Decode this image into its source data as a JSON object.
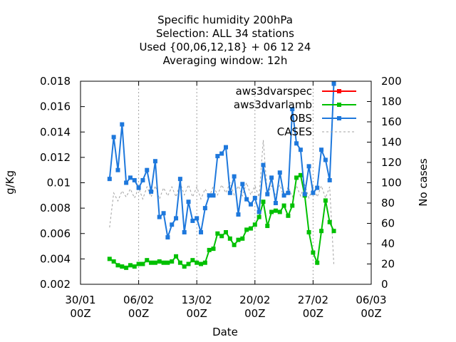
{
  "chart_data": {
    "type": "line",
    "title_lines": [
      "Specific humidity 200hPa",
      "Selection: ALL     34 stations",
      "Used {00,06,12,18} + 06 12 24",
      "Averaging window: 12h"
    ],
    "xlabel": "Date",
    "ylabel": "g/Kg",
    "y2label": "No cases",
    "x_ticks": [
      {
        "day": 0,
        "line1": "30/01",
        "line2": "00Z"
      },
      {
        "day": 7,
        "line1": "06/02",
        "line2": "00Z"
      },
      {
        "day": 14,
        "line1": "13/02",
        "line2": "00Z"
      },
      {
        "day": 21,
        "line1": "20/02",
        "line2": "00Z"
      },
      {
        "day": 28,
        "line1": "27/02",
        "line2": "00Z"
      },
      {
        "day": 35,
        "line1": "06/03",
        "line2": "00Z"
      }
    ],
    "xlim_days": [
      0,
      35
    ],
    "ylim": [
      0.002,
      0.018
    ],
    "y_ticks": [
      "0.002",
      "0.004",
      "0.006",
      "0.008",
      "0.01",
      "0.012",
      "0.014",
      "0.016",
      "0.018"
    ],
    "y2lim": [
      0,
      200
    ],
    "y2_ticks": [
      "0",
      "20",
      "40",
      "60",
      "80",
      "100",
      "120",
      "140",
      "160",
      "180",
      "200"
    ],
    "legend_position": "top-right",
    "series": [
      {
        "name": "aws3dvarspec",
        "axis": "y",
        "color": "#ff0000",
        "style": "line-points",
        "points": []
      },
      {
        "name": "aws3dvarlamb",
        "axis": "y",
        "color": "#00c000",
        "style": "line-points",
        "points": [
          [
            3.5,
            0.004
          ],
          [
            4.0,
            0.0038
          ],
          [
            4.5,
            0.0035
          ],
          [
            5.0,
            0.0034
          ],
          [
            5.5,
            0.0033
          ],
          [
            6.0,
            0.0035
          ],
          [
            6.5,
            0.0034
          ],
          [
            7.0,
            0.0036
          ],
          [
            7.5,
            0.0036
          ],
          [
            8.0,
            0.0039
          ],
          [
            8.5,
            0.0037
          ],
          [
            9.0,
            0.0037
          ],
          [
            9.5,
            0.0038
          ],
          [
            10.0,
            0.0037
          ],
          [
            10.5,
            0.0037
          ],
          [
            11.0,
            0.0038
          ],
          [
            11.5,
            0.0042
          ],
          [
            12.0,
            0.0037
          ],
          [
            12.5,
            0.0034
          ],
          [
            13.0,
            0.0036
          ],
          [
            13.5,
            0.0039
          ],
          [
            14.0,
            0.0037
          ],
          [
            14.5,
            0.0036
          ],
          [
            15.0,
            0.0037
          ],
          [
            15.5,
            0.0047
          ],
          [
            16.0,
            0.0048
          ],
          [
            16.5,
            0.006
          ],
          [
            17.0,
            0.0058
          ],
          [
            17.5,
            0.0061
          ],
          [
            18.0,
            0.0056
          ],
          [
            18.5,
            0.0051
          ],
          [
            19.0,
            0.0055
          ],
          [
            19.5,
            0.0056
          ],
          [
            20.0,
            0.0063
          ],
          [
            20.5,
            0.0064
          ],
          [
            21.0,
            0.0067
          ],
          [
            21.5,
            0.0073
          ],
          [
            22.0,
            0.0085
          ],
          [
            22.5,
            0.0066
          ],
          [
            23.0,
            0.0077
          ],
          [
            23.5,
            0.0078
          ],
          [
            24.0,
            0.0077
          ],
          [
            24.5,
            0.0082
          ],
          [
            25.0,
            0.0074
          ],
          [
            25.5,
            0.0082
          ],
          [
            26.0,
            0.0104
          ],
          [
            26.5,
            0.0106
          ],
          [
            27.0,
            0.009
          ],
          [
            27.5,
            0.0061
          ],
          [
            28.0,
            0.0045
          ],
          [
            28.5,
            0.0037
          ],
          [
            29.0,
            0.0062
          ],
          [
            29.5,
            0.0086
          ],
          [
            30.0,
            0.0069
          ],
          [
            30.5,
            0.0062
          ]
        ]
      },
      {
        "name": "OBS",
        "axis": "y",
        "color": "#1e78dc",
        "style": "line-points",
        "points": [
          [
            3.5,
            0.0103
          ],
          [
            4.0,
            0.0136
          ],
          [
            4.5,
            0.011
          ],
          [
            5.0,
            0.0146
          ],
          [
            5.5,
            0.01
          ],
          [
            6.0,
            0.0104
          ],
          [
            6.5,
            0.0102
          ],
          [
            7.0,
            0.0096
          ],
          [
            7.5,
            0.0102
          ],
          [
            8.0,
            0.011
          ],
          [
            8.5,
            0.0093
          ],
          [
            9.0,
            0.0117
          ],
          [
            9.5,
            0.0073
          ],
          [
            10.0,
            0.0076
          ],
          [
            10.5,
            0.0057
          ],
          [
            11.0,
            0.0067
          ],
          [
            11.5,
            0.0072
          ],
          [
            12.0,
            0.0103
          ],
          [
            12.5,
            0.0061
          ],
          [
            13.0,
            0.0085
          ],
          [
            13.5,
            0.007
          ],
          [
            14.0,
            0.0072
          ],
          [
            14.5,
            0.0061
          ],
          [
            15.0,
            0.008
          ],
          [
            15.5,
            0.009
          ],
          [
            16.0,
            0.009
          ],
          [
            16.5,
            0.0121
          ],
          [
            17.0,
            0.0123
          ],
          [
            17.5,
            0.0128
          ],
          [
            18.0,
            0.0092
          ],
          [
            18.5,
            0.0105
          ],
          [
            19.0,
            0.0075
          ],
          [
            19.5,
            0.0099
          ],
          [
            20.0,
            0.0087
          ],
          [
            20.5,
            0.0083
          ],
          [
            21.0,
            0.0088
          ],
          [
            21.5,
            0.0077
          ],
          [
            22.0,
            0.0114
          ],
          [
            22.5,
            0.0091
          ],
          [
            23.0,
            0.0104
          ],
          [
            23.5,
            0.0084
          ],
          [
            24.0,
            0.0108
          ],
          [
            24.5,
            0.009
          ],
          [
            25.0,
            0.0092
          ],
          [
            25.5,
            0.0158
          ],
          [
            26.0,
            0.0131
          ],
          [
            26.5,
            0.0126
          ],
          [
            27.0,
            0.0091
          ],
          [
            27.5,
            0.0113
          ],
          [
            28.0,
            0.0092
          ],
          [
            28.5,
            0.0096
          ],
          [
            29.0,
            0.0126
          ],
          [
            29.5,
            0.0118
          ],
          [
            30.0,
            0.0102
          ],
          [
            30.5,
            0.0178
          ]
        ]
      },
      {
        "name": "CASES",
        "axis": "y2",
        "color": "#a0a0a0",
        "style": "dashed",
        "points": [
          [
            3.5,
            56
          ],
          [
            4.0,
            90
          ],
          [
            4.5,
            82
          ],
          [
            5.0,
            92
          ],
          [
            5.5,
            86
          ],
          [
            6.0,
            94
          ],
          [
            6.5,
            85
          ],
          [
            7.0,
            95
          ],
          [
            7.5,
            84
          ],
          [
            8.0,
            96
          ],
          [
            8.5,
            86
          ],
          [
            9.0,
            97
          ],
          [
            9.5,
            84
          ],
          [
            10.0,
            95
          ],
          [
            10.5,
            87
          ],
          [
            11.0,
            96
          ],
          [
            11.5,
            86
          ],
          [
            12.0,
            100
          ],
          [
            12.5,
            88
          ],
          [
            13.0,
            98
          ],
          [
            13.5,
            86
          ],
          [
            14.0,
            96
          ],
          [
            14.5,
            84
          ],
          [
            15.0,
            94
          ],
          [
            15.5,
            86
          ],
          [
            16.0,
            97
          ],
          [
            16.5,
            88
          ],
          [
            17.0,
            98
          ],
          [
            17.5,
            90
          ],
          [
            18.0,
            100
          ],
          [
            18.5,
            88
          ],
          [
            19.0,
            97
          ],
          [
            19.5,
            87
          ],
          [
            20.0,
            100
          ],
          [
            20.5,
            88
          ],
          [
            21.0,
            97
          ],
          [
            21.5,
            86
          ],
          [
            22.0,
            142
          ],
          [
            22.5,
            88
          ],
          [
            23.0,
            97
          ],
          [
            23.5,
            87
          ],
          [
            24.0,
            98
          ],
          [
            24.5,
            85
          ],
          [
            25.0,
            96
          ],
          [
            25.5,
            86
          ],
          [
            26.0,
            97
          ],
          [
            26.5,
            87
          ],
          [
            27.0,
            98
          ],
          [
            27.5,
            85
          ],
          [
            28.0,
            96
          ],
          [
            28.5,
            86
          ],
          [
            29.0,
            97
          ],
          [
            29.5,
            85
          ],
          [
            30.0,
            96
          ],
          [
            30.5,
            20
          ]
        ]
      }
    ]
  }
}
